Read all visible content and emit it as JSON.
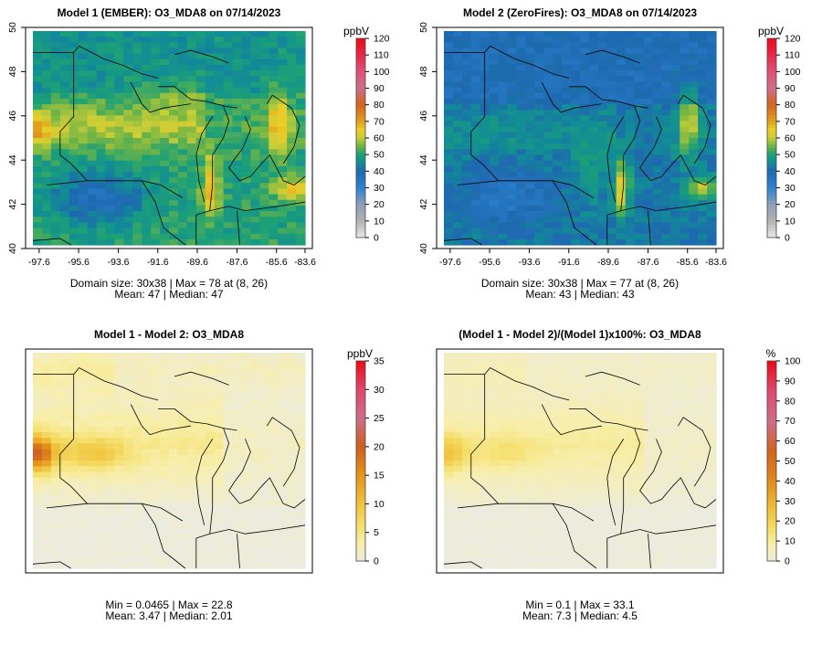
{
  "chart_data": [
    {
      "type": "heatmap",
      "title": "Model 1 (EMBER): O3_MDA8 on 07/14/2023",
      "xticks": [
        "-97.6",
        "-95.6",
        "-93.6",
        "-91.6",
        "-89.6",
        "-87.6",
        "-85.6",
        "-83.6"
      ],
      "yticks": [
        "40",
        "42",
        "44",
        "46",
        "48",
        "50"
      ],
      "grid_size": "30x38",
      "colorbar": {
        "unit": "ppbV",
        "ticks": [
          "0",
          "10",
          "20",
          "30",
          "40",
          "50",
          "60",
          "70",
          "80",
          "90",
          "100",
          "110",
          "120"
        ],
        "range": [
          0,
          120
        ]
      },
      "stats": [
        "Domain size: 30x38 | Max = 78 at (8, 26)",
        "Mean: 47 |  Median: 47"
      ],
      "values": {
        "max": 78,
        "mean": 47,
        "median": 47
      }
    },
    {
      "type": "heatmap",
      "title": "Model 2 (ZeroFires): O3_MDA8 on 07/14/2023",
      "xticks": [
        "-97.6",
        "-95.6",
        "-93.6",
        "-91.6",
        "-89.6",
        "-87.6",
        "-85.6",
        "-83.6"
      ],
      "yticks": [
        "40",
        "42",
        "44",
        "46",
        "48",
        "50"
      ],
      "grid_size": "30x38",
      "colorbar": {
        "unit": "ppbV",
        "ticks": [
          "0",
          "10",
          "20",
          "30",
          "40",
          "50",
          "60",
          "70",
          "80",
          "90",
          "100",
          "110",
          "120"
        ],
        "range": [
          0,
          120
        ]
      },
      "stats": [
        "Domain size: 30x38 | Max = 77 at (8, 26)",
        "Mean: 43 |  Median: 43"
      ],
      "values": {
        "max": 77,
        "mean": 43,
        "median": 43
      }
    },
    {
      "type": "heatmap",
      "title": "Model 1 - Model 2: O3_MDA8",
      "colorbar": {
        "unit": "ppbV",
        "ticks": [
          "0",
          "5",
          "10",
          "15",
          "20",
          "25",
          "30",
          "35"
        ],
        "range": [
          0,
          35
        ]
      },
      "stats": [
        "Min = 0.0465 | Max = 22.8",
        "Mean: 3.47 |  Median: 2.01"
      ],
      "values": {
        "min": 0.0465,
        "max": 22.8,
        "mean": 3.47,
        "median": 2.01
      }
    },
    {
      "type": "heatmap",
      "title": "(Model 1 - Model 2)/(Model 1)x100%: O3_MDA8",
      "colorbar": {
        "unit": "%",
        "ticks": [
          "0",
          "10",
          "20",
          "30",
          "40",
          "50",
          "60",
          "70",
          "80",
          "90",
          "100"
        ],
        "range": [
          0,
          100
        ]
      },
      "stats": [
        "Min = 0.1 | Max = 33.1",
        "Mean: 7.3 |  Median: 4.5"
      ],
      "values": {
        "min": 0.1,
        "max": 33.1,
        "mean": 7.3,
        "median": 4.5
      }
    }
  ]
}
